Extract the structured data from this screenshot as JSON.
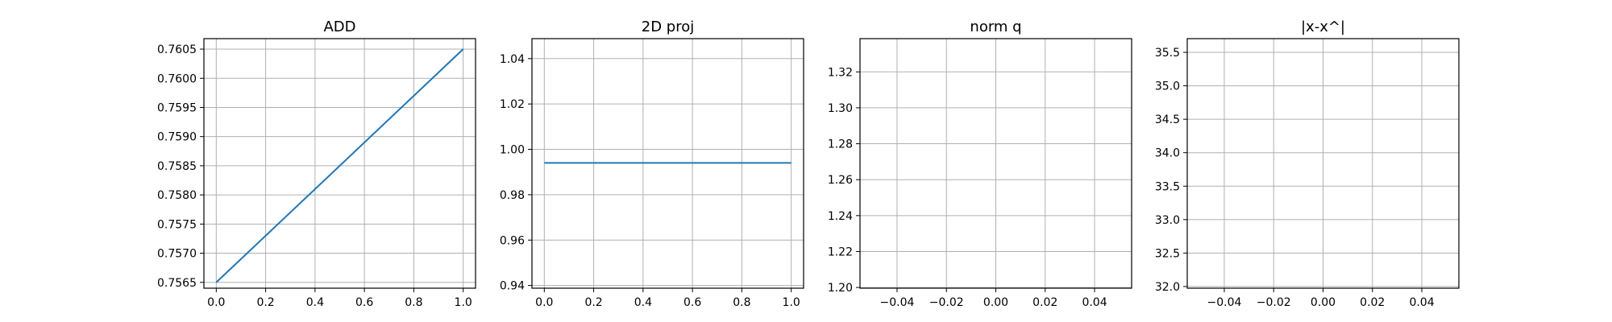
{
  "chart_data": [
    {
      "type": "line",
      "title": "ADD",
      "xlabel": "",
      "ylabel": "",
      "xlim": [
        -0.05,
        1.05
      ],
      "ylim": [
        0.7564,
        0.76068
      ],
      "grid": true,
      "x_ticks": [
        "0.0",
        "0.2",
        "0.4",
        "0.6",
        "0.8",
        "1.0"
      ],
      "y_ticks": [
        "0.7565",
        "0.7570",
        "0.7575",
        "0.7580",
        "0.7585",
        "0.7590",
        "0.7595",
        "0.7600",
        "0.7605"
      ],
      "series": [
        {
          "x": [
            0,
            1
          ],
          "y": [
            0.7565,
            0.7605
          ]
        }
      ],
      "color": "#1f77b4"
    },
    {
      "type": "line",
      "title": "2D proj",
      "xlabel": "",
      "ylabel": "",
      "xlim": [
        -0.05,
        1.05
      ],
      "ylim": [
        0.9388,
        1.0488
      ],
      "grid": true,
      "x_ticks": [
        "0.0",
        "0.2",
        "0.4",
        "0.6",
        "0.8",
        "1.0"
      ],
      "y_ticks": [
        "0.94",
        "0.96",
        "0.98",
        "1.00",
        "1.02",
        "1.04"
      ],
      "series": [
        {
          "x": [
            0,
            1
          ],
          "y": [
            0.994,
            0.994
          ]
        }
      ],
      "color": "#1f77b4"
    },
    {
      "type": "line",
      "title": "norm q",
      "xlabel": "",
      "ylabel": "",
      "xlim": [
        -0.055,
        0.055
      ],
      "ylim": [
        1.1996,
        1.3385
      ],
      "grid": true,
      "x_ticks": [
        "−0.04",
        "−0.02",
        "0.00",
        "0.02",
        "0.04"
      ],
      "y_ticks": [
        "1.20",
        "1.22",
        "1.24",
        "1.26",
        "1.28",
        "1.30",
        "1.32"
      ],
      "series": [],
      "color": "#1f77b4"
    },
    {
      "type": "line",
      "title": "|x-x^|",
      "xlabel": "",
      "ylabel": "",
      "xlim": [
        -0.055,
        0.055
      ],
      "ylim": [
        31.975,
        35.705
      ],
      "grid": true,
      "x_ticks": [
        "−0.04",
        "−0.02",
        "0.00",
        "0.02",
        "0.04"
      ],
      "y_ticks": [
        "32.0",
        "32.5",
        "33.0",
        "33.5",
        "34.0",
        "34.5",
        "35.0",
        "35.5"
      ],
      "series": [],
      "color": "#1f77b4"
    }
  ]
}
